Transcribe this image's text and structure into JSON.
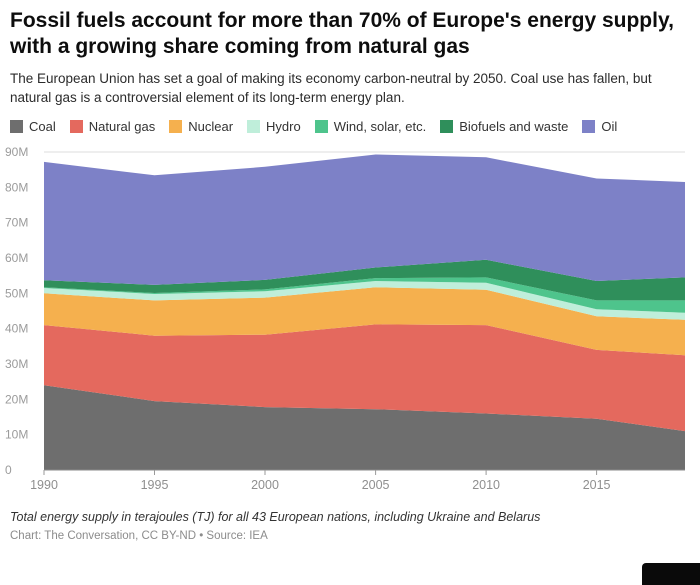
{
  "header": {
    "title": "Fossil fuels account for more than 70% of Europe's energy supply, with a growing share coming from natural gas",
    "subtitle": "The European Union has set a goal of making its economy carbon-neutral by 2050. Coal use has fallen, but natural gas is a controversial element of its long-term energy plan."
  },
  "chart_data": {
    "type": "area",
    "stacked": true,
    "title": "Fossil fuels account for more than 70% of Europe's energy supply, with a growing share coming from natural gas",
    "unit": "million terajoules (TJ)",
    "x": [
      1990,
      1995,
      2000,
      2005,
      2010,
      2015,
      2019
    ],
    "x_ticks": [
      1990,
      1995,
      2000,
      2005,
      2010,
      2015
    ],
    "ylim": [
      0,
      90
    ],
    "y_ticks": [
      "0",
      "10M",
      "20M",
      "30M",
      "40M",
      "50M",
      "60M",
      "70M",
      "80M",
      "90M"
    ],
    "grid": true,
    "legend_position": "top",
    "series": [
      {
        "name": "Coal",
        "color": "#6e6e6e",
        "values": [
          24,
          19.5,
          17.8,
          17.2,
          16,
          14.5,
          11
        ]
      },
      {
        "name": "Natural gas",
        "color": "#e4695e",
        "values": [
          17,
          18.5,
          20.5,
          24,
          25,
          19.5,
          21.5
        ]
      },
      {
        "name": "Nuclear",
        "color": "#f5b04e",
        "values": [
          9,
          10,
          10.5,
          10.5,
          10,
          9.5,
          10
        ]
      },
      {
        "name": "Hydro",
        "color": "#bfeeda",
        "values": [
          1.5,
          1.8,
          1.8,
          1.8,
          2,
          2,
          2
        ]
      },
      {
        "name": "Wind, solar, etc.",
        "color": "#4ec48c",
        "values": [
          0.2,
          0.3,
          0.5,
          0.8,
          1.5,
          2.5,
          3.5
        ]
      },
      {
        "name": "Biofuels and waste",
        "color": "#2f8f5b",
        "values": [
          2,
          2.3,
          2.7,
          3,
          5,
          5.5,
          6.5
        ]
      },
      {
        "name": "Oil",
        "color": "#7d81c7",
        "values": [
          33.5,
          31,
          32,
          32,
          29,
          29,
          27
        ]
      }
    ]
  },
  "footer": {
    "note": "Total energy supply in terajoules (TJ) for all 43 European nations, including Ukraine and Belarus",
    "credits": "Chart: The Conversation, CC BY-ND • Source: IEA"
  }
}
